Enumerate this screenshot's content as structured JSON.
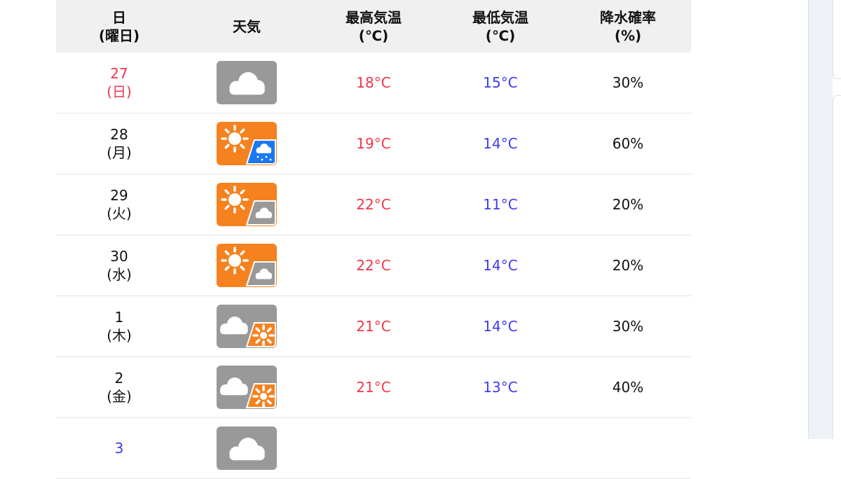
{
  "header": {
    "date": [
      "日",
      "(曜日)"
    ],
    "weather": "天気",
    "high": [
      "最高気温",
      "(℃)"
    ],
    "low": [
      "最低気温",
      "(℃)"
    ],
    "rain": [
      "降水確率",
      "(%)"
    ]
  },
  "colors": {
    "high": "#f0364b",
    "low": "#3b3bf0",
    "cloudy": "#999999",
    "sunny": "#f5821f",
    "rain": "#1a78f0"
  },
  "rows": [
    {
      "day": "27",
      "dow": "(日)",
      "icon": "cloudy",
      "high": "18°C",
      "low": "15°C",
      "rain": "30%",
      "dayType": "sun"
    },
    {
      "day": "28",
      "dow": "(月)",
      "icon": "sunny-then-rain",
      "high": "19°C",
      "low": "14°C",
      "rain": "60%",
      "dayType": ""
    },
    {
      "day": "29",
      "dow": "(火)",
      "icon": "sunny-then-cloudy",
      "high": "22°C",
      "low": "11°C",
      "rain": "20%",
      "dayType": ""
    },
    {
      "day": "30",
      "dow": "(水)",
      "icon": "sunny-then-cloudy",
      "high": "22°C",
      "low": "14°C",
      "rain": "20%",
      "dayType": ""
    },
    {
      "day": "1",
      "dow": "(木)",
      "icon": "cloudy-then-sunny",
      "high": "21°C",
      "low": "14°C",
      "rain": "30%",
      "dayType": ""
    },
    {
      "day": "2",
      "dow": "(金)",
      "icon": "cloudy-then-sunny",
      "high": "21°C",
      "low": "13°C",
      "rain": "40%",
      "dayType": ""
    },
    {
      "day": "3",
      "dow": "",
      "icon": "cloudy",
      "high": "",
      "low": "",
      "rain": "",
      "dayType": "sat"
    }
  ]
}
